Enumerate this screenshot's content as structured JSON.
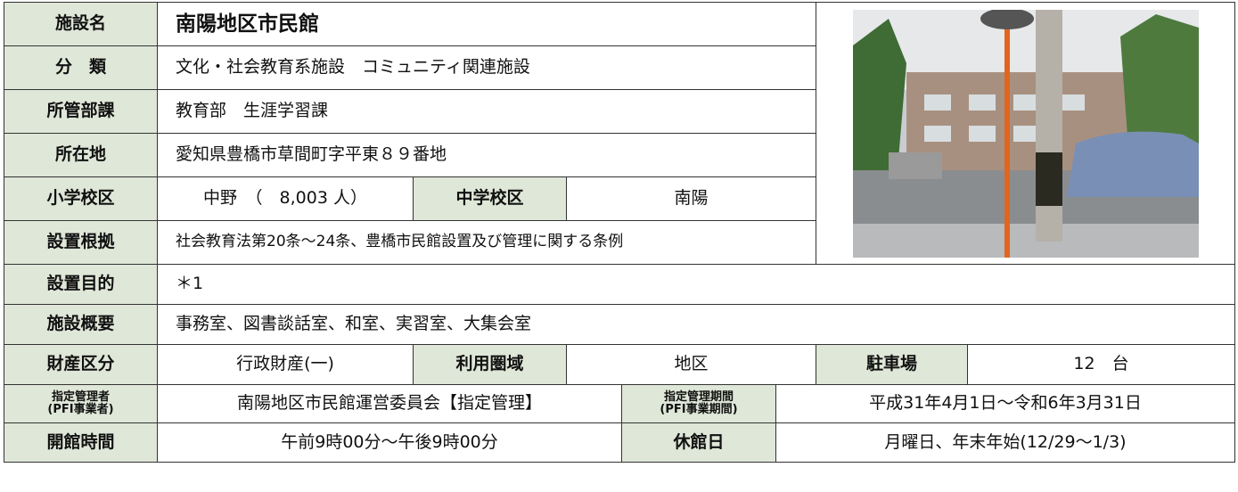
{
  "facility": {
    "name_label": "施設名",
    "name": "南陽地区市民館",
    "category_label": "分　類",
    "category": "文化・社会教育系施設　コミュニティ関連施設",
    "department_label": "所管部課",
    "department": "教育部　生涯学習課",
    "address_label": "所在地",
    "address": "愛知県豊橋市草間町字平東８９番地",
    "elementary_label": "小学校区",
    "elementary": "中野　（　8,003 人）",
    "junior_high_label": "中学校区",
    "junior_high": "南陽",
    "basis_label": "設置根拠",
    "basis": "社会教育法第20条～24条、豊橋市民館設置及び管理に関する条例",
    "purpose_label": "設置目的",
    "purpose": "＊1",
    "overview_label": "施設概要",
    "overview": "事務室、図書談話室、和室、実習室、大集会室",
    "property_label": "財産区分",
    "property": "行政財産(一)",
    "area_label": "利用圏域",
    "area": "地区",
    "parking_label": "駐車場",
    "parking": "12　台",
    "manager_label": "指定管理者\n(PFI事業者)",
    "manager": "南陽地区市民館運営委員会【指定管理】",
    "period_label": "指定管理期間\n(PFI事業期間)",
    "period": "平成31年4月1日～令和6年3月31日",
    "hours_label": "開館時間",
    "hours": "午前9時00分～午後9時00分",
    "closed_label": "休館日",
    "closed": "月曜日、年末年始(12/29～1/3)"
  }
}
